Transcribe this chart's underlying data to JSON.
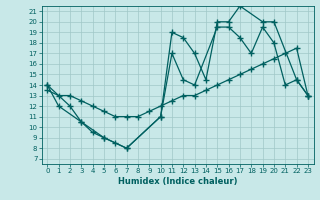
{
  "background_color": "#c8e8e8",
  "grid_color": "#a0c8c8",
  "line_color": "#006060",
  "xlabel": "Humidex (Indice chaleur)",
  "xlim": [
    -0.5,
    23.5
  ],
  "ylim": [
    6.5,
    21.5
  ],
  "xticks": [
    0,
    1,
    2,
    3,
    4,
    5,
    6,
    7,
    8,
    9,
    10,
    11,
    12,
    13,
    14,
    15,
    16,
    17,
    18,
    19,
    20,
    21,
    22,
    23
  ],
  "yticks": [
    7,
    8,
    9,
    10,
    11,
    12,
    13,
    14,
    15,
    16,
    17,
    18,
    19,
    20,
    21
  ],
  "line1_x": [
    0,
    2,
    3,
    5,
    7,
    10,
    11,
    12,
    13,
    14,
    15,
    16,
    17,
    19,
    20,
    22,
    23
  ],
  "line1_y": [
    14,
    12,
    10.5,
    9,
    8,
    11,
    19,
    18.5,
    17,
    14.5,
    20,
    20,
    21.5,
    20,
    20,
    14.5,
    13
  ],
  "line2_x": [
    0,
    1,
    3,
    4,
    5,
    6,
    7,
    10,
    11,
    12,
    13,
    15,
    16,
    17,
    18,
    19,
    20,
    21,
    22,
    23
  ],
  "line2_y": [
    14,
    12,
    10.5,
    9.5,
    9,
    8.5,
    8,
    11,
    17,
    14.5,
    14,
    19.5,
    19.5,
    18.5,
    17,
    19.5,
    18,
    14,
    14.5,
    13
  ],
  "line3_x": [
    0,
    1,
    2,
    3,
    4,
    5,
    6,
    7,
    8,
    9,
    10,
    11,
    12,
    13,
    14,
    15,
    16,
    17,
    18,
    19,
    20,
    21,
    22,
    23
  ],
  "line3_y": [
    13.5,
    13,
    13,
    12.5,
    12,
    11.5,
    11,
    11,
    11,
    11.5,
    12,
    12.5,
    13,
    13,
    13.5,
    14,
    14.5,
    15,
    15.5,
    16,
    16.5,
    17,
    17.5,
    13
  ]
}
